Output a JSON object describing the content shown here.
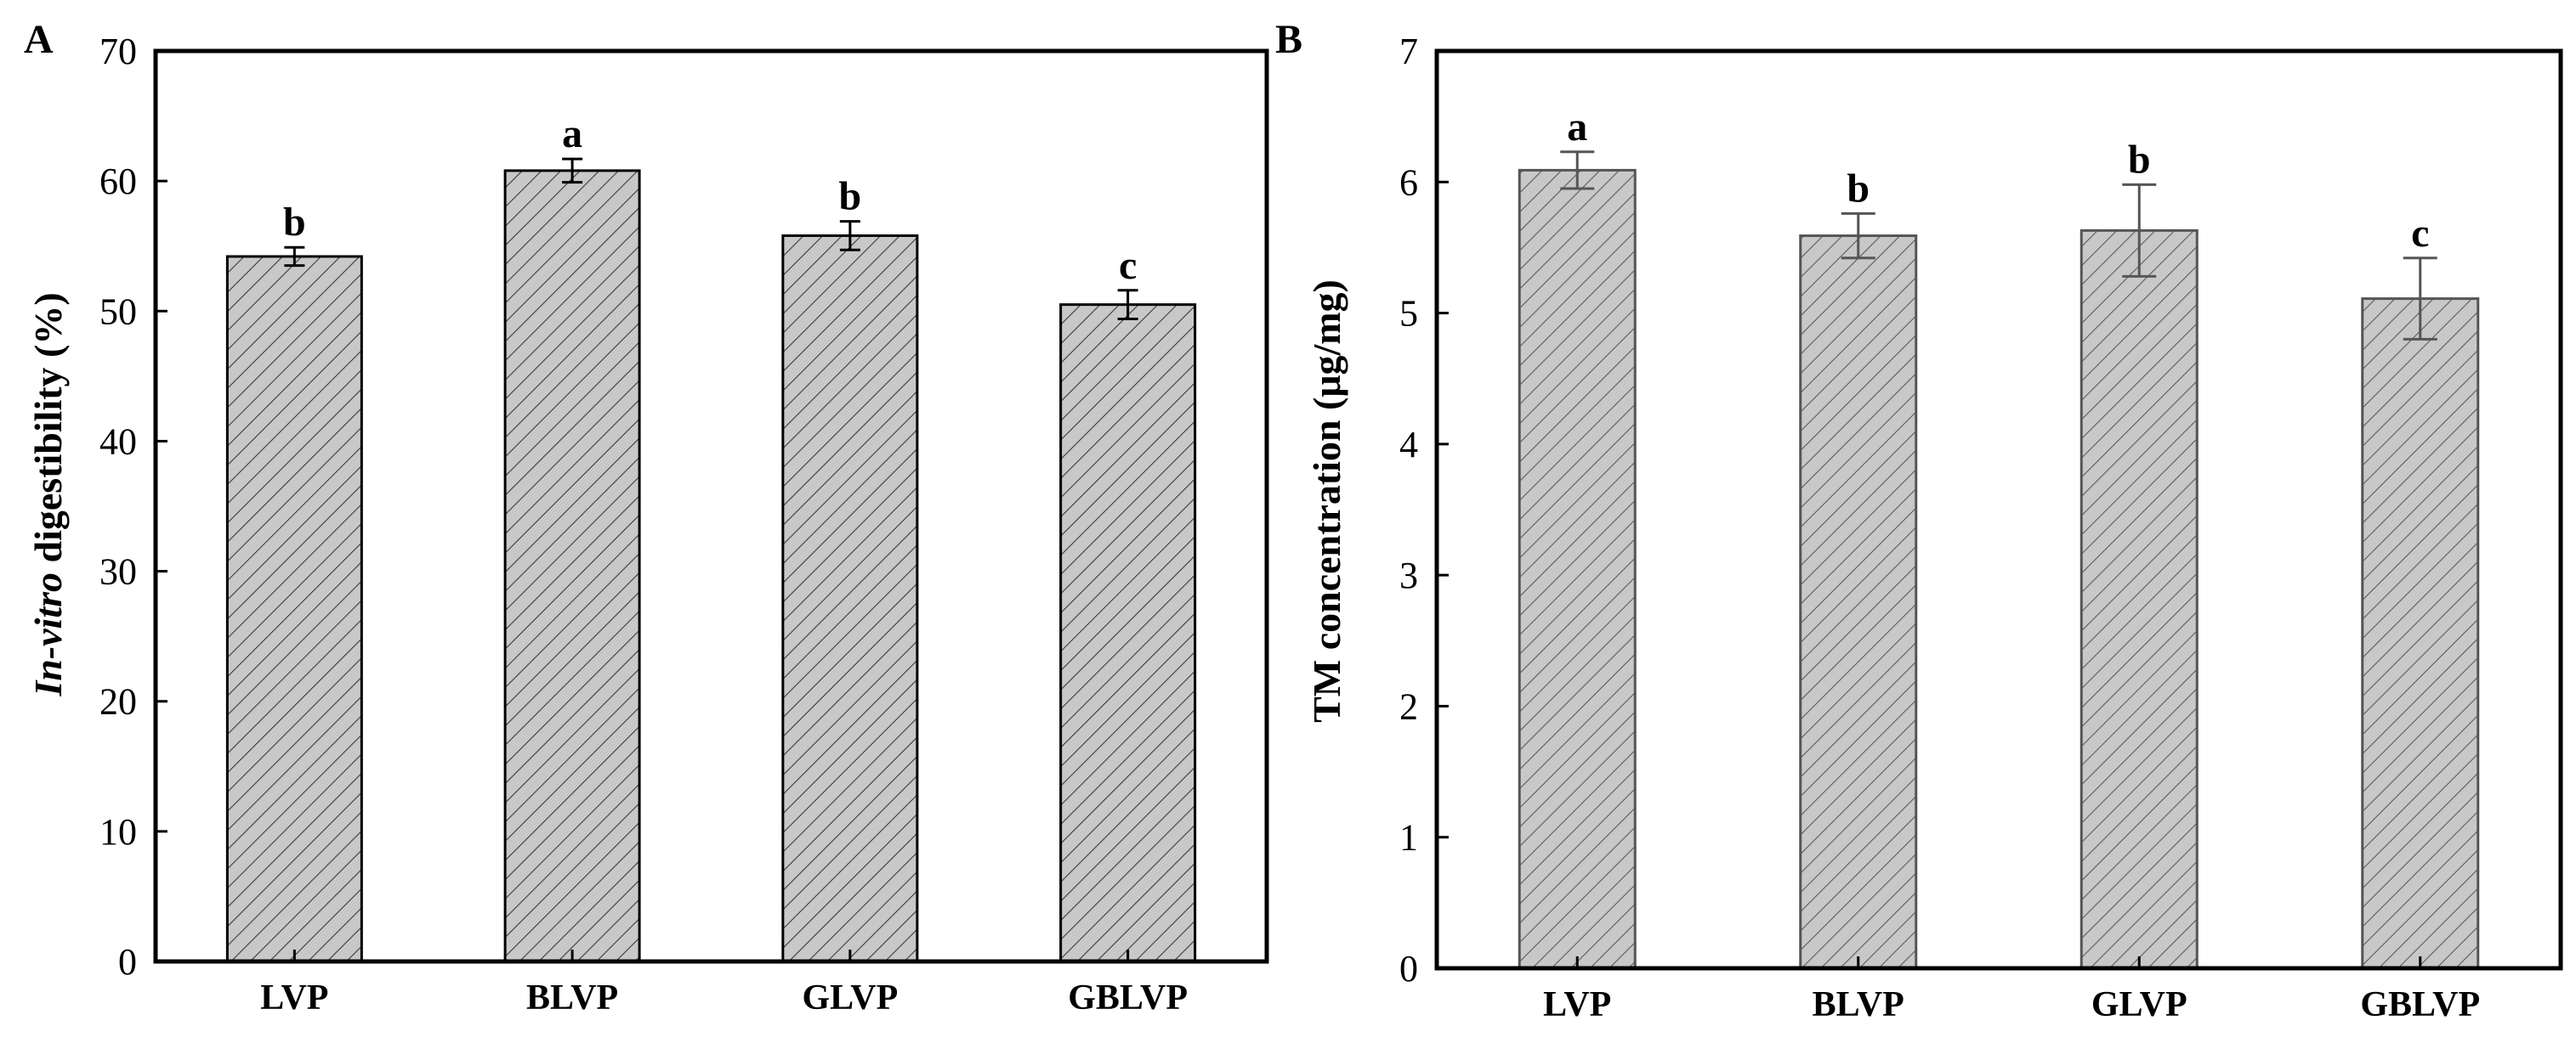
{
  "chart_data": [
    {
      "type": "bar",
      "panel": "A",
      "title": "",
      "xlabel": "",
      "ylabel_italic": "In-vitro",
      "ylabel_rest": " digestibility (%)",
      "categories": [
        "LVP",
        "BLVP",
        "GLVP",
        "GBLVP"
      ],
      "values": [
        54.2,
        60.8,
        55.8,
        50.5
      ],
      "errors": [
        0.7,
        0.9,
        1.1,
        1.1
      ],
      "significance": [
        "b",
        "a",
        "b",
        "c"
      ],
      "ylim": [
        0,
        70
      ],
      "yticks": [
        0,
        10,
        20,
        30,
        40,
        50,
        60,
        70
      ],
      "bar_fill": "#c8c8c8",
      "hatch": "diagonal",
      "frame_color": "#000000"
    },
    {
      "type": "bar",
      "panel": "B",
      "title": "",
      "xlabel": "",
      "ylabel": "TM concentration (μg/mg)",
      "categories": [
        "LVP",
        "BLVP",
        "GLVP",
        "GBLVP"
      ],
      "values": [
        6.09,
        5.59,
        5.63,
        5.11
      ],
      "errors": [
        0.14,
        0.17,
        0.35,
        0.31
      ],
      "significance": [
        "a",
        "b",
        "b",
        "c"
      ],
      "ylim": [
        0,
        7
      ],
      "yticks": [
        0,
        1,
        2,
        3,
        4,
        5,
        6,
        7
      ],
      "bar_fill": "#c8c8c8",
      "hatch": "diagonal",
      "frame_color": "#000000"
    }
  ]
}
